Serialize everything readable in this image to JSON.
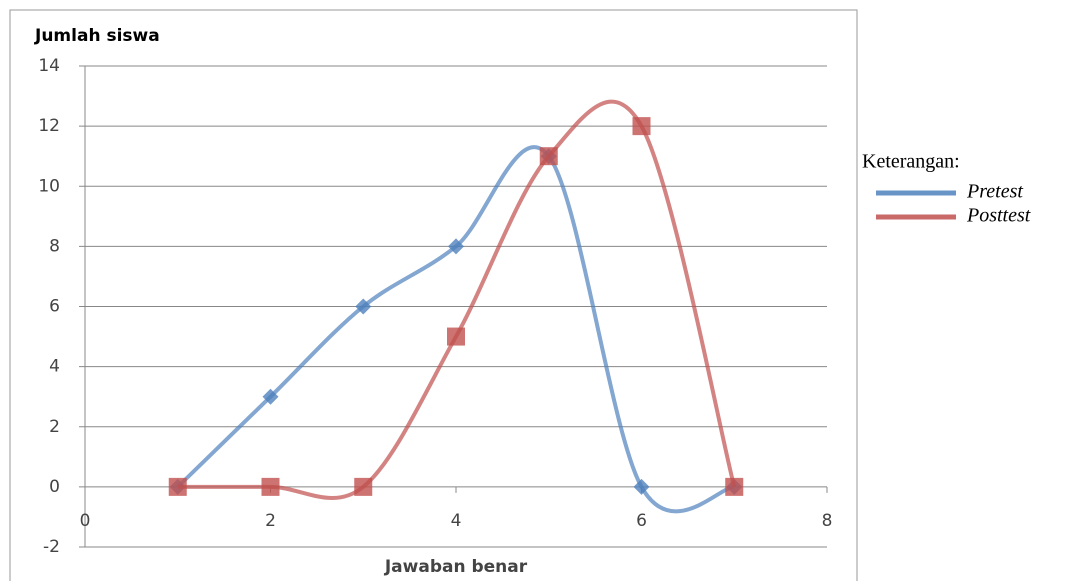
{
  "chart_data": {
    "type": "line",
    "y_axis_label": "Jumlah siswa",
    "x_axis_label": "Jawaban benar",
    "legend_title": "Keterangan:",
    "x": [
      1,
      2,
      3,
      4,
      5,
      6,
      7
    ],
    "series": [
      {
        "name": "Pretest",
        "color": "#4f81bd",
        "marker": "diamond",
        "values": [
          0,
          3,
          6,
          8,
          11,
          0,
          0
        ]
      },
      {
        "name": "Posttest",
        "color": "#c0504d",
        "marker": "square",
        "values": [
          0,
          0,
          0,
          5,
          11,
          12,
          0
        ]
      }
    ],
    "xlim": [
      0,
      8
    ],
    "xticks": [
      0,
      2,
      4,
      6,
      8
    ],
    "ylim": [
      -2,
      14
    ],
    "yticks": [
      -2,
      0,
      2,
      4,
      6,
      8,
      10,
      12,
      14
    ],
    "grid": true,
    "smooth": true,
    "legend": "right"
  }
}
